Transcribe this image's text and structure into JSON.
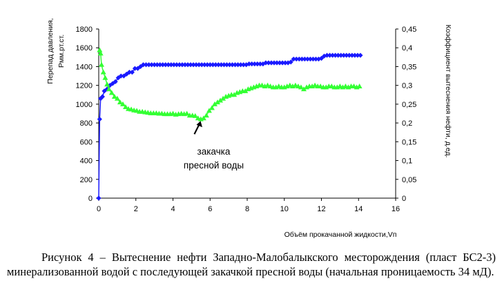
{
  "chart_data": {
    "type": "scatter",
    "title": "",
    "xlabel": "Объём прокачанной жидкости,Vп",
    "ylabel_left": [
      "Перепад давления,",
      "Pмм.рт.ст."
    ],
    "ylabel_right": "Коэффициент вытеснения нефти, д.ед.",
    "xlim": [
      0,
      16
    ],
    "ylim_left": [
      0,
      1800
    ],
    "ylim_right": [
      0,
      0.45
    ],
    "x_ticks": [
      "0",
      "2",
      "4",
      "6",
      "8",
      "10",
      "12",
      "14",
      "16"
    ],
    "y_left_ticks": [
      "0",
      "200",
      "400",
      "600",
      "800",
      "1000",
      "1200",
      "1400",
      "1600",
      "1800"
    ],
    "y_right_ticks": [
      "0",
      "0,05",
      "0,1",
      "0,15",
      "0,2",
      "0,25",
      "0,3",
      "0,35",
      "0,4",
      "0,45"
    ],
    "grid": false,
    "legend": "none",
    "series": [
      {
        "axis": "right",
        "marker": "diamond",
        "color": "#1a1aff",
        "x": [
          0.0,
          0.05,
          0.1,
          0.2,
          0.3,
          0.45,
          0.6,
          0.75,
          0.9,
          1.05,
          1.2,
          1.35,
          1.5,
          1.65,
          1.8,
          1.95,
          2.1,
          2.25,
          2.4,
          2.55,
          2.7,
          2.85,
          3.0,
          3.15,
          3.3,
          3.45,
          3.6,
          3.75,
          3.9,
          4.05,
          4.2,
          4.35,
          4.5,
          4.65,
          4.8,
          4.95,
          5.1,
          5.25,
          5.4,
          5.55,
          5.7,
          5.85,
          6.0,
          6.15,
          6.3,
          6.45,
          6.6,
          6.75,
          6.9,
          7.05,
          7.2,
          7.35,
          7.5,
          7.65,
          7.8,
          7.95,
          8.1,
          8.25,
          8.4,
          8.55,
          8.7,
          8.85,
          9.0,
          9.15,
          9.3,
          9.45,
          9.6,
          9.75,
          9.9,
          10.05,
          10.2,
          10.35,
          10.5,
          10.65,
          10.8,
          10.95,
          11.1,
          11.25,
          11.4,
          11.55,
          11.7,
          11.85,
          12.0,
          12.15,
          12.3,
          12.45,
          12.6,
          12.75,
          12.9,
          13.05,
          13.2,
          13.35,
          13.5,
          13.65,
          13.8,
          13.95,
          14.1
        ],
        "y": [
          0.0,
          0.21,
          0.265,
          0.27,
          0.285,
          0.29,
          0.3,
          0.305,
          0.31,
          0.32,
          0.325,
          0.325,
          0.33,
          0.335,
          0.335,
          0.345,
          0.345,
          0.35,
          0.355,
          0.355,
          0.355,
          0.355,
          0.355,
          0.355,
          0.355,
          0.355,
          0.355,
          0.355,
          0.355,
          0.355,
          0.355,
          0.355,
          0.355,
          0.355,
          0.355,
          0.355,
          0.355,
          0.355,
          0.355,
          0.355,
          0.355,
          0.355,
          0.355,
          0.355,
          0.355,
          0.355,
          0.355,
          0.355,
          0.355,
          0.355,
          0.355,
          0.355,
          0.355,
          0.355,
          0.355,
          0.355,
          0.357,
          0.357,
          0.357,
          0.357,
          0.357,
          0.357,
          0.36,
          0.36,
          0.36,
          0.36,
          0.36,
          0.36,
          0.36,
          0.36,
          0.36,
          0.362,
          0.37,
          0.37,
          0.37,
          0.37,
          0.37,
          0.37,
          0.37,
          0.37,
          0.37,
          0.37,
          0.372,
          0.378,
          0.38,
          0.38,
          0.38,
          0.38,
          0.38,
          0.38,
          0.38,
          0.38,
          0.38,
          0.38,
          0.38,
          0.38,
          0.38
        ]
      },
      {
        "axis": "left",
        "marker": "triangle",
        "color": "#33ff33",
        "x": [
          0.05,
          0.1,
          0.15,
          0.25,
          0.35,
          0.45,
          0.55,
          0.7,
          0.85,
          1.0,
          1.15,
          1.3,
          1.45,
          1.6,
          1.75,
          1.9,
          2.05,
          2.2,
          2.35,
          2.5,
          2.65,
          2.8,
          2.95,
          3.1,
          3.25,
          3.4,
          3.55,
          3.7,
          3.85,
          4.0,
          4.15,
          4.3,
          4.45,
          4.6,
          4.75,
          4.9,
          5.05,
          5.2,
          5.35,
          5.5,
          5.65,
          5.8,
          5.95,
          6.1,
          6.25,
          6.4,
          6.55,
          6.7,
          6.85,
          7.0,
          7.15,
          7.3,
          7.45,
          7.6,
          7.75,
          7.9,
          8.05,
          8.2,
          8.35,
          8.5,
          8.65,
          8.8,
          8.95,
          9.1,
          9.25,
          9.4,
          9.55,
          9.7,
          9.85,
          10.0,
          10.15,
          10.3,
          10.45,
          10.6,
          10.75,
          10.9,
          11.05,
          11.2,
          11.35,
          11.5,
          11.65,
          11.8,
          11.95,
          12.1,
          12.25,
          12.4,
          12.55,
          12.7,
          12.85,
          13.0,
          13.15,
          13.3,
          13.45,
          13.6,
          13.75,
          13.9,
          14.05
        ],
        "y": [
          1575,
          1540,
          1420,
          1340,
          1280,
          1210,
          1160,
          1120,
          1080,
          1060,
          1020,
          1000,
          970,
          950,
          945,
          935,
          930,
          920,
          920,
          915,
          910,
          905,
          905,
          905,
          900,
          900,
          895,
          895,
          895,
          900,
          890,
          895,
          900,
          895,
          900,
          880,
          880,
          875,
          850,
          840,
          850,
          880,
          930,
          960,
          1000,
          1020,
          1040,
          1060,
          1080,
          1090,
          1100,
          1100,
          1120,
          1130,
          1140,
          1140,
          1160,
          1170,
          1180,
          1190,
          1200,
          1200,
          1190,
          1200,
          1190,
          1180,
          1180,
          1190,
          1180,
          1180,
          1190,
          1200,
          1190,
          1200,
          1190,
          1180,
          1160,
          1180,
          1190,
          1190,
          1200,
          1190,
          1190,
          1180,
          1180,
          1190,
          1190,
          1180,
          1180,
          1190,
          1180,
          1190,
          1180,
          1190,
          1190,
          1180,
          1190
        ]
      }
    ],
    "annotation": {
      "lines": [
        "закачка",
        "пресной воды"
      ],
      "arrow_to_x": 5.45,
      "arrow_to_y_left": 850
    }
  },
  "caption": "Рисунок 4 – Вытеснение нефти Западно-Малобалыкского месторождения (пласт БС2-3) минерализованной водой с последующей закачкой пресной воды (начальная проницаемость 34 мД)."
}
